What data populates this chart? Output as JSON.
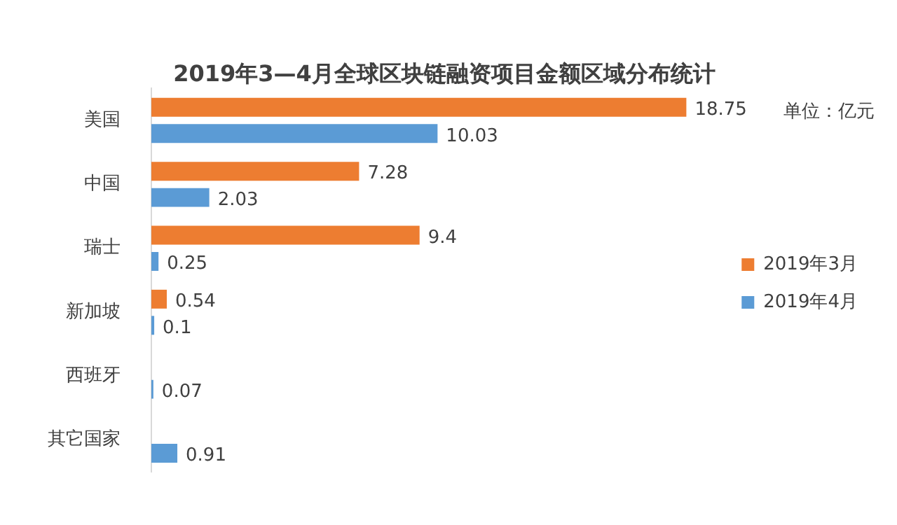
{
  "chart_data": {
    "type": "bar",
    "orientation": "horizontal",
    "title": "2019年3—4月全球区块链融资项目金额区域分布统计",
    "annotations": [
      "单位：亿元"
    ],
    "categories": [
      "美国",
      "中国",
      "瑞士",
      "新加坡",
      "西班牙",
      "其它国家"
    ],
    "series": [
      {
        "name": "2019年3月",
        "color": "#ed7d31",
        "values": [
          18.75,
          7.28,
          9.4,
          0.54,
          null,
          null
        ]
      },
      {
        "name": "2019年4月",
        "color": "#5b9bd5",
        "values": [
          10.03,
          2.03,
          0.25,
          0.1,
          0.07,
          0.91
        ]
      }
    ],
    "data_labels": true,
    "grid": false,
    "legend": "right",
    "tick_labels": "y"
  }
}
